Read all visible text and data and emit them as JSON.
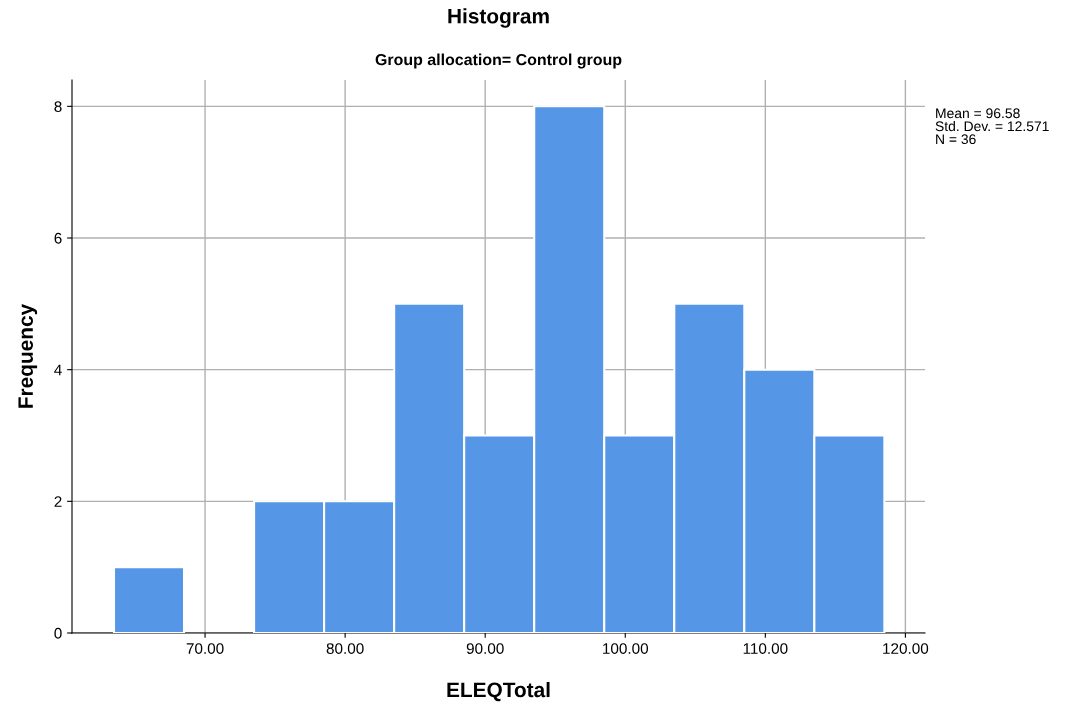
{
  "chart_data": {
    "type": "histogram",
    "title": "Histogram",
    "subtitle": "Group allocation= Control group",
    "xlabel": "ELEQTotal",
    "ylabel": "Frequency",
    "bins": [
      63.5,
      68.5,
      73.5,
      78.5,
      83.5,
      88.5,
      93.5,
      98.5,
      103.5,
      108.5,
      113.5,
      118.5
    ],
    "values": [
      1,
      0,
      2,
      2,
      5,
      3,
      8,
      3,
      5,
      4,
      3
    ],
    "color": "#5596e6",
    "xlim": [
      60.5,
      121.4
    ],
    "xticks": [
      {
        "value": 70,
        "label": "70.00"
      },
      {
        "value": 80,
        "label": "80.00"
      },
      {
        "value": 90,
        "label": "90.00"
      },
      {
        "value": 100,
        "label": "100.00"
      },
      {
        "value": 110,
        "label": "110.00"
      },
      {
        "value": 120,
        "label": "120.00"
      }
    ],
    "ylim": [
      0,
      8.4
    ],
    "yticks": [
      0,
      2,
      4,
      6,
      8
    ],
    "grid": true,
    "annotations": [
      "Mean = 96.58\nStd. Dev. = 12.571\nN = 36"
    ]
  }
}
